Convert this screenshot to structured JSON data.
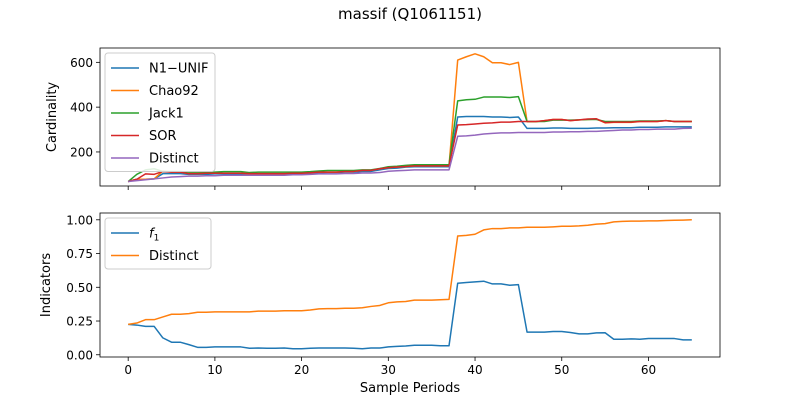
{
  "title": "massif (Q1061151)",
  "chart_data": [
    {
      "type": "line",
      "ylabel": "Cardinality",
      "xlabel": "",
      "xlim": [
        -3.25,
        68.25
      ],
      "ylim": [
        48,
        664
      ],
      "xticks": [
        0,
        10,
        20,
        30,
        40,
        50,
        60
      ],
      "yticks": [
        200,
        400,
        600
      ],
      "legend_position": "upper left",
      "x": [
        0,
        1,
        2,
        3,
        4,
        5,
        6,
        7,
        8,
        9,
        10,
        11,
        12,
        13,
        14,
        15,
        16,
        17,
        18,
        19,
        20,
        21,
        22,
        23,
        24,
        25,
        26,
        27,
        28,
        29,
        30,
        31,
        32,
        33,
        34,
        35,
        36,
        37,
        38,
        39,
        40,
        41,
        42,
        43,
        44,
        45,
        46,
        47,
        48,
        49,
        50,
        51,
        52,
        53,
        54,
        55,
        56,
        57,
        58,
        59,
        60,
        61,
        62,
        63,
        64,
        65
      ],
      "series": [
        {
          "name": "N1−UNIF",
          "color": "#1f77b4",
          "values": [
            68,
            78,
            78,
            80,
            103,
            103,
            103,
            100,
            100,
            100,
            102,
            102,
            102,
            102,
            100,
            100,
            100,
            100,
            102,
            102,
            102,
            105,
            106,
            108,
            108,
            110,
            110,
            113,
            113,
            120,
            126,
            128,
            132,
            134,
            134,
            134,
            134,
            134,
            356,
            358,
            358,
            358,
            356,
            356,
            354,
            356,
            305,
            305,
            305,
            307,
            307,
            305,
            305,
            305,
            307,
            307,
            308,
            308,
            308,
            310,
            310,
            310,
            312,
            312,
            312,
            312
          ]
        },
        {
          "name": "Chao92",
          "color": "#ff7f0e",
          "values": [
            68,
            78,
            78,
            80,
            115,
            110,
            110,
            103,
            103,
            105,
            105,
            105,
            105,
            105,
            103,
            103,
            103,
            103,
            103,
            105,
            105,
            107,
            110,
            110,
            110,
            113,
            113,
            118,
            118,
            125,
            130,
            133,
            135,
            138,
            138,
            138,
            138,
            138,
            610,
            625,
            638,
            625,
            598,
            598,
            590,
            600,
            335,
            335,
            340,
            345,
            345,
            340,
            343,
            345,
            347,
            330,
            332,
            332,
            332,
            336,
            336,
            336,
            340,
            336,
            336,
            336
          ]
        },
        {
          "name": "Jack1",
          "color": "#2ca02c",
          "values": [
            68,
            100,
            120,
            125,
            113,
            113,
            113,
            110,
            110,
            110,
            110,
            112,
            112,
            112,
            108,
            110,
            110,
            110,
            110,
            110,
            110,
            112,
            115,
            117,
            117,
            117,
            117,
            120,
            120,
            126,
            134,
            136,
            140,
            143,
            143,
            143,
            143,
            143,
            428,
            433,
            435,
            445,
            445,
            445,
            443,
            447,
            336,
            336,
            336,
            342,
            342,
            342,
            343,
            345,
            345,
            336,
            336,
            336,
            336,
            338,
            338,
            338,
            340,
            336,
            336,
            336
          ]
        },
        {
          "name": "SOR",
          "color": "#d62728",
          "values": [
            68,
            78,
            102,
            100,
            113,
            110,
            110,
            103,
            103,
            105,
            105,
            105,
            105,
            105,
            103,
            103,
            103,
            103,
            103,
            105,
            105,
            107,
            110,
            110,
            110,
            113,
            113,
            118,
            118,
            125,
            130,
            133,
            135,
            138,
            138,
            138,
            138,
            138,
            320,
            322,
            325,
            328,
            330,
            333,
            333,
            336,
            336,
            336,
            340,
            345,
            345,
            340,
            343,
            347,
            348,
            331,
            333,
            333,
            333,
            336,
            336,
            336,
            340,
            336,
            336,
            336
          ]
        },
        {
          "name": "Distinct",
          "color": "#9467bd",
          "values": [
            68,
            72,
            76,
            80,
            84,
            88,
            90,
            92,
            92,
            94,
            94,
            96,
            96,
            96,
            96,
            96,
            96,
            96,
            96,
            98,
            98,
            100,
            102,
            102,
            102,
            104,
            104,
            106,
            106,
            108,
            114,
            116,
            118,
            120,
            120,
            120,
            120,
            120,
            270,
            272,
            275,
            280,
            283,
            285,
            285,
            287,
            287,
            287,
            287,
            289,
            289,
            290,
            290,
            292,
            292,
            294,
            296,
            298,
            298,
            300,
            300,
            302,
            302,
            302,
            305,
            306
          ]
        }
      ]
    },
    {
      "type": "line",
      "ylabel": "Indicators",
      "xlabel": "Sample Periods",
      "xlim": [
        -3.25,
        68.25
      ],
      "ylim": [
        -0.0166,
        1.0504
      ],
      "xticks": [
        0,
        10,
        20,
        30,
        40,
        50,
        60
      ],
      "yticks": [
        "0.00",
        "0.25",
        "0.50",
        "0.75",
        "1.00"
      ],
      "legend_position": "upper left",
      "x": [
        0,
        1,
        2,
        3,
        4,
        5,
        6,
        7,
        8,
        9,
        10,
        11,
        12,
        13,
        14,
        15,
        16,
        17,
        18,
        19,
        20,
        21,
        22,
        23,
        24,
        25,
        26,
        27,
        28,
        29,
        30,
        31,
        32,
        33,
        34,
        35,
        36,
        37,
        38,
        39,
        40,
        41,
        42,
        43,
        44,
        45,
        46,
        47,
        48,
        49,
        50,
        51,
        52,
        53,
        54,
        55,
        56,
        57,
        58,
        59,
        60,
        61,
        62,
        63,
        64,
        65
      ],
      "series": [
        {
          "name": "f1",
          "label_main": "f",
          "label_sub": "1",
          "color": "#1f77b4",
          "values": [
            0.225,
            0.22,
            0.21,
            0.21,
            0.125,
            0.093,
            0.093,
            0.075,
            0.055,
            0.055,
            0.058,
            0.058,
            0.058,
            0.058,
            0.048,
            0.05,
            0.048,
            0.048,
            0.05,
            0.045,
            0.045,
            0.048,
            0.05,
            0.05,
            0.05,
            0.05,
            0.048,
            0.045,
            0.05,
            0.05,
            0.058,
            0.062,
            0.065,
            0.07,
            0.07,
            0.07,
            0.067,
            0.067,
            0.53,
            0.535,
            0.54,
            0.545,
            0.525,
            0.525,
            0.515,
            0.52,
            0.168,
            0.168,
            0.168,
            0.172,
            0.172,
            0.165,
            0.155,
            0.155,
            0.162,
            0.163,
            0.115,
            0.115,
            0.118,
            0.115,
            0.12,
            0.12,
            0.12,
            0.12,
            0.11,
            0.11
          ]
        },
        {
          "name": "Distinct",
          "color": "#ff7f0e",
          "values": [
            0.225,
            0.235,
            0.26,
            0.26,
            0.28,
            0.3,
            0.3,
            0.305,
            0.315,
            0.315,
            0.318,
            0.318,
            0.318,
            0.318,
            0.318,
            0.323,
            0.323,
            0.323,
            0.326,
            0.326,
            0.326,
            0.332,
            0.34,
            0.342,
            0.342,
            0.345,
            0.345,
            0.348,
            0.358,
            0.365,
            0.385,
            0.392,
            0.395,
            0.405,
            0.405,
            0.405,
            0.408,
            0.41,
            0.88,
            0.885,
            0.893,
            0.925,
            0.935,
            0.935,
            0.94,
            0.94,
            0.945,
            0.945,
            0.945,
            0.948,
            0.952,
            0.952,
            0.955,
            0.96,
            0.968,
            0.972,
            0.985,
            0.988,
            0.99,
            0.99,
            0.992,
            0.992,
            0.995,
            0.997,
            0.998,
            1.0
          ]
        }
      ]
    }
  ]
}
